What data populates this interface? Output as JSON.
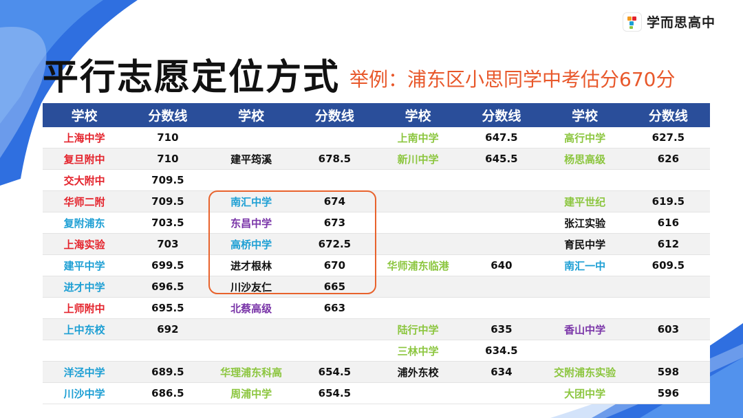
{
  "brand": {
    "name": "学而思高中"
  },
  "title": "平行志愿定位方式",
  "subtitle": "举例：浦东区小思同学中考估分670分",
  "colors": {
    "header_bg": "#2a4e9a",
    "red": "#e4232c",
    "blue": "#1d9fd4",
    "purple": "#7a35a8",
    "green": "#8cc63f",
    "black": "#111111",
    "highlight": "#e8622c"
  },
  "table": {
    "headers": [
      "学校",
      "分数线",
      "学校",
      "分数线",
      "学校",
      "分数线",
      "学校",
      "分数线"
    ],
    "rows": [
      [
        [
          "上海中学",
          "red"
        ],
        [
          "710"
        ],
        [
          "",
          ""
        ],
        [
          ""
        ],
        [
          "上南中学",
          "green"
        ],
        [
          "647.5"
        ],
        [
          "高行中学",
          "green"
        ],
        [
          "627.5"
        ]
      ],
      [
        [
          "复旦附中",
          "red"
        ],
        [
          "710"
        ],
        [
          "建平筠溪",
          "black"
        ],
        [
          "678.5"
        ],
        [
          "新川中学",
          "green"
        ],
        [
          "645.5"
        ],
        [
          "杨思高级",
          "green"
        ],
        [
          "626"
        ]
      ],
      [
        [
          "交大附中",
          "red"
        ],
        [
          "709.5"
        ],
        [
          "",
          ""
        ],
        [
          ""
        ],
        [
          "",
          ""
        ],
        [
          ""
        ],
        [
          "",
          ""
        ],
        [
          ""
        ]
      ],
      [
        [
          "华师二附",
          "red"
        ],
        [
          "709.5"
        ],
        [
          "南汇中学",
          "blue"
        ],
        [
          "674"
        ],
        [
          "",
          ""
        ],
        [
          ""
        ],
        [
          "建平世纪",
          "green"
        ],
        [
          "619.5"
        ]
      ],
      [
        [
          "复附浦东",
          "blue"
        ],
        [
          "703.5"
        ],
        [
          "东昌中学",
          "purple"
        ],
        [
          "673"
        ],
        [
          "",
          ""
        ],
        [
          ""
        ],
        [
          "张江实验",
          "black"
        ],
        [
          "616"
        ]
      ],
      [
        [
          "上海实验",
          "red"
        ],
        [
          "703"
        ],
        [
          "高桥中学",
          "blue"
        ],
        [
          "672.5"
        ],
        [
          "",
          ""
        ],
        [
          ""
        ],
        [
          "育民中学",
          "black"
        ],
        [
          "612"
        ]
      ],
      [
        [
          "建平中学",
          "blue"
        ],
        [
          "699.5"
        ],
        [
          "进才根林",
          "black"
        ],
        [
          "670"
        ],
        [
          "华师浦东临港",
          "green"
        ],
        [
          "640"
        ],
        [
          "南汇一中",
          "blue"
        ],
        [
          "609.5"
        ]
      ],
      [
        [
          "进才中学",
          "blue"
        ],
        [
          "696.5"
        ],
        [
          "川沙友仁",
          "black"
        ],
        [
          "665"
        ],
        [
          "",
          ""
        ],
        [
          ""
        ],
        [
          "",
          ""
        ],
        [
          ""
        ]
      ],
      [
        [
          "上师附中",
          "red"
        ],
        [
          "695.5"
        ],
        [
          "北蔡高级",
          "purple"
        ],
        [
          "663"
        ],
        [
          "",
          ""
        ],
        [
          ""
        ],
        [
          "",
          ""
        ],
        [
          ""
        ]
      ],
      [
        [
          "上中东校",
          "blue"
        ],
        [
          "692"
        ],
        [
          "",
          ""
        ],
        [
          ""
        ],
        [
          "陆行中学",
          "green"
        ],
        [
          "635"
        ],
        [
          "香山中学",
          "purple"
        ],
        [
          "603"
        ]
      ],
      [
        [
          "",
          ""
        ],
        [
          ""
        ],
        [
          "",
          ""
        ],
        [
          ""
        ],
        [
          "三林中学",
          "green"
        ],
        [
          "634.5"
        ],
        [
          "",
          ""
        ],
        [
          ""
        ]
      ],
      [
        [
          "洋泾中学",
          "blue"
        ],
        [
          "689.5"
        ],
        [
          "华理浦东科高",
          "green"
        ],
        [
          "654.5"
        ],
        [
          "浦外东校",
          "black"
        ],
        [
          "634"
        ],
        [
          "交附浦东实验",
          "green"
        ],
        [
          "598"
        ]
      ],
      [
        [
          "川沙中学",
          "blue"
        ],
        [
          "686.5"
        ],
        [
          "周浦中学",
          "green"
        ],
        [
          "654.5"
        ],
        [
          "",
          ""
        ],
        [
          ""
        ],
        [
          "大团中学",
          "green"
        ],
        [
          "596"
        ]
      ]
    ]
  }
}
